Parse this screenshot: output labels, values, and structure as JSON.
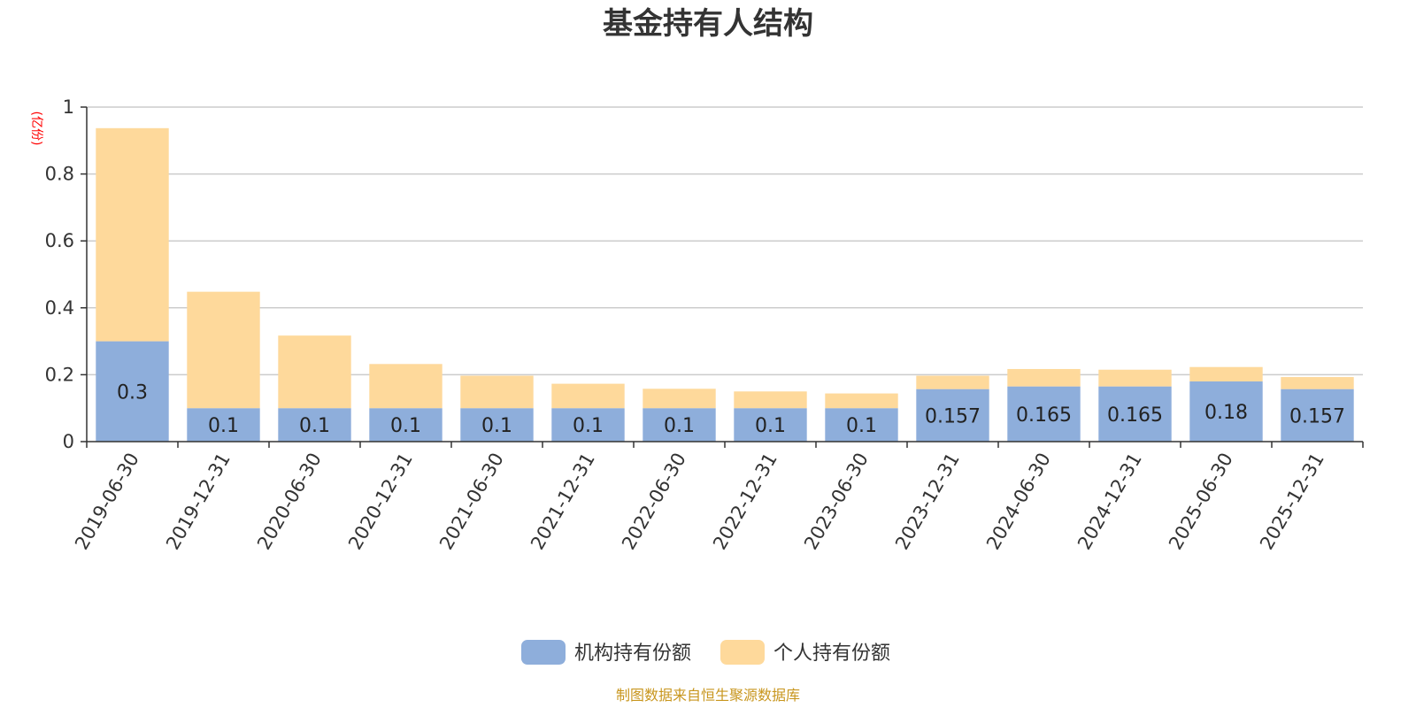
{
  "chart_data": {
    "type": "bar",
    "stacked": true,
    "title": "基金持有人结构",
    "ylabel": "(亿份)",
    "ylim": [
      0,
      1
    ],
    "yticks": [
      "0",
      "0.2",
      "0.4",
      "0.6",
      "0.8",
      "1"
    ],
    "categories": [
      "2019-06-30",
      "2019-12-31",
      "2020-06-30",
      "2020-12-31",
      "2021-06-30",
      "2021-12-31",
      "2022-06-30",
      "2022-12-31",
      "2023-06-30",
      "2023-12-31",
      "2024-06-30",
      "2024-12-31",
      "2025-06-30",
      "2025-12-31"
    ],
    "series": [
      {
        "name": "机构持有份额",
        "color": "#8eaedb",
        "values": [
          0.3,
          0.1,
          0.1,
          0.1,
          0.1,
          0.1,
          0.1,
          0.1,
          0.1,
          0.157,
          0.165,
          0.165,
          0.18,
          0.157
        ],
        "labels": [
          "0.3",
          "0.1",
          "0.1",
          "0.1",
          "0.1",
          "0.1",
          "0.1",
          "0.1",
          "0.1",
          "0.157",
          "0.165",
          "0.165",
          "0.18",
          "0.157"
        ]
      },
      {
        "name": "个人持有份额",
        "color": "#fed99b",
        "values": [
          0.637,
          0.348,
          0.217,
          0.132,
          0.097,
          0.073,
          0.058,
          0.05,
          0.044,
          0.04,
          0.052,
          0.05,
          0.043,
          0.036
        ]
      }
    ],
    "grid": true,
    "legend_position": "bottom-center",
    "source": "制图数据来自恒生聚源数据库"
  }
}
